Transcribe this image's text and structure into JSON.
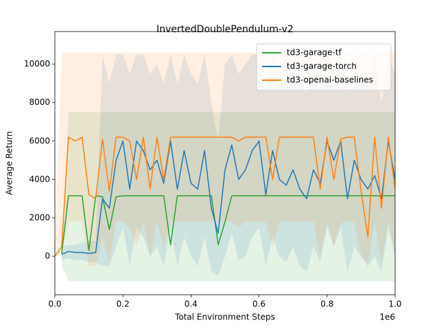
{
  "chart_data": {
    "type": "line",
    "title": "InvertedDoublePendulum-v2",
    "xlabel": "Total Environment Steps",
    "ylabel": "Average Return",
    "x_offset_label": "1e6",
    "legend": "upper right",
    "x": [
      0,
      0.02,
      0.04,
      0.06,
      0.08,
      0.1,
      0.12,
      0.14,
      0.16,
      0.18,
      0.2,
      0.22,
      0.24,
      0.26,
      0.28,
      0.3,
      0.32,
      0.34,
      0.36,
      0.38,
      0.4,
      0.42,
      0.44,
      0.46,
      0.48,
      0.5,
      0.52,
      0.54,
      0.56,
      0.58,
      0.6,
      0.62,
      0.64,
      0.66,
      0.68,
      0.7,
      0.72,
      0.74,
      0.76,
      0.78,
      0.8,
      0.82,
      0.84,
      0.86,
      0.88,
      0.9,
      0.92,
      0.94,
      0.96,
      0.98,
      1
    ],
    "xlim": [
      0,
      1
    ],
    "xticks": [
      {
        "value": 0,
        "label": "0.0"
      },
      0.2,
      0.4,
      0.6,
      0.8,
      {
        "value": 1,
        "label": "1.0"
      }
    ],
    "ylim": [
      -2000,
      11700
    ],
    "yticks": [
      0,
      2000,
      4000,
      6000,
      8000,
      10000
    ],
    "series": [
      {
        "name": "td3-garage-tf",
        "color": "#2ca02c",
        "values": [
          null,
          150,
          3150,
          3150,
          3150,
          300,
          3150,
          3100,
          1400,
          3100,
          3150,
          3150,
          3150,
          3150,
          3150,
          3150,
          3150,
          600,
          3150,
          3150,
          3150,
          3150,
          3150,
          3150,
          600,
          1800,
          3150,
          3150,
          3150,
          3150,
          3150,
          3150,
          3150,
          3150,
          3150,
          3150,
          3150,
          3150,
          3150,
          3150,
          3150,
          3150,
          3150,
          3150,
          3150,
          3150,
          3150,
          3150,
          3150,
          3150,
          3150
        ],
        "band_upper": [
          null,
          400,
          7500,
          7500,
          7500,
          7500,
          7500,
          7500,
          7500,
          7500,
          7500,
          7500,
          7500,
          7500,
          7500,
          7500,
          7500,
          7500,
          7500,
          7500,
          7500,
          7500,
          7500,
          7500,
          7500,
          7500,
          7500,
          7500,
          7500,
          7500,
          7500,
          7500,
          7500,
          7500,
          7500,
          7500,
          7500,
          7500,
          7500,
          7500,
          7500,
          7500,
          7500,
          7500,
          7500,
          7500,
          7500,
          7500,
          7500,
          7500,
          7500
        ],
        "band_lower": [
          null,
          -500,
          -1300,
          -1300,
          -1300,
          -1300,
          -1300,
          -1300,
          -1300,
          -1300,
          -1300,
          -1300,
          -1300,
          -1300,
          -1300,
          -1300,
          -1300,
          -1300,
          -1300,
          -1300,
          -1300,
          -1300,
          -1300,
          -1300,
          -1300,
          -1300,
          -1300,
          -1300,
          -1300,
          -1300,
          -1300,
          -1300,
          -1300,
          -1300,
          -1300,
          -1300,
          -1300,
          -1300,
          -1300,
          -1300,
          -1300,
          -1300,
          -1300,
          -1300,
          -1300,
          -1300,
          -1300,
          -1300,
          -1300,
          -1300,
          -1300
        ]
      },
      {
        "name": "td3-garage-torch",
        "color": "#1f77b4",
        "values": [
          null,
          100,
          250,
          200,
          200,
          150,
          200,
          3000,
          2500,
          5000,
          6000,
          3500,
          6000,
          5500,
          4500,
          5000,
          3800,
          6000,
          3500,
          5500,
          3800,
          3500,
          5500,
          2500,
          1200,
          4500,
          5800,
          4000,
          4500,
          5500,
          6000,
          3200,
          5500,
          4000,
          3700,
          4500,
          3500,
          3000,
          4500,
          3800,
          6000,
          5000,
          6000,
          3000,
          5000,
          4000,
          3500,
          4200,
          3000,
          6000,
          4000
        ],
        "band_upper": [
          null,
          500,
          600,
          600,
          700,
          800,
          800,
          10500,
          9000,
          10500,
          10500,
          9500,
          10500,
          10500,
          9500,
          10000,
          9000,
          10500,
          9000,
          10500,
          9500,
          9000,
          10500,
          8000,
          6000,
          10000,
          10500,
          9500,
          10000,
          10500,
          10500,
          9000,
          10500,
          9500,
          9000,
          10000,
          9000,
          8500,
          10000,
          9000,
          10500,
          10000,
          10500,
          8500,
          10500,
          9500,
          9000,
          10500,
          8000,
          10500,
          9500
        ],
        "band_lower": [
          null,
          -200,
          -100,
          -200,
          -200,
          -300,
          -300,
          -500,
          -500,
          500,
          1500,
          -500,
          1500,
          1000,
          0,
          500,
          -500,
          1500,
          -500,
          1000,
          0,
          -500,
          1000,
          -800,
          -1000,
          0,
          1200,
          -200,
          0,
          1000,
          1500,
          -500,
          1000,
          0,
          -300,
          500,
          -500,
          -800,
          500,
          -300,
          1500,
          500,
          1500,
          -800,
          500,
          0,
          -500,
          0,
          -800,
          1500,
          0
        ]
      },
      {
        "name": "td3-openai-baselines",
        "color": "#ff7f0e",
        "values": [
          0,
          500,
          6200,
          6000,
          6200,
          3200,
          3000,
          6100,
          3400,
          6200,
          6200,
          6000,
          4000,
          6200,
          3500,
          6200,
          4000,
          6200,
          6200,
          6200,
          6200,
          6200,
          6200,
          6200,
          6200,
          6200,
          6200,
          6000,
          6200,
          6200,
          6200,
          6200,
          4000,
          6200,
          6200,
          6200,
          6200,
          6200,
          6200,
          3500,
          6200,
          4000,
          6100,
          6200,
          6200,
          3400,
          1000,
          6200,
          2500,
          6200,
          3500
        ],
        "band_upper": [
          0,
          10600,
          10600,
          10600,
          10600,
          10600,
          10600,
          10600,
          10600,
          10600,
          10600,
          10600,
          10600,
          10600,
          10600,
          10600,
          10600,
          10600,
          10600,
          10600,
          10600,
          10600,
          10600,
          10600,
          10600,
          10600,
          10600,
          10600,
          10600,
          10600,
          10600,
          10600,
          10600,
          10600,
          10600,
          10600,
          10600,
          10600,
          10600,
          10600,
          10600,
          10600,
          10600,
          10600,
          10600,
          10600,
          10600,
          10600,
          10600,
          10600,
          10600
        ],
        "band_lower": [
          0,
          200,
          1800,
          1800,
          1800,
          -500,
          -500,
          1000,
          -300,
          1800,
          1800,
          1500,
          500,
          1800,
          0,
          1800,
          500,
          1800,
          1800,
          1800,
          1800,
          1800,
          1800,
          1800,
          1800,
          1800,
          1800,
          1500,
          1800,
          1800,
          1800,
          1800,
          500,
          1800,
          1800,
          1800,
          1800,
          1800,
          1800,
          0,
          1800,
          500,
          1700,
          1800,
          1800,
          0,
          -500,
          1800,
          -300,
          1800,
          0
        ]
      }
    ]
  }
}
